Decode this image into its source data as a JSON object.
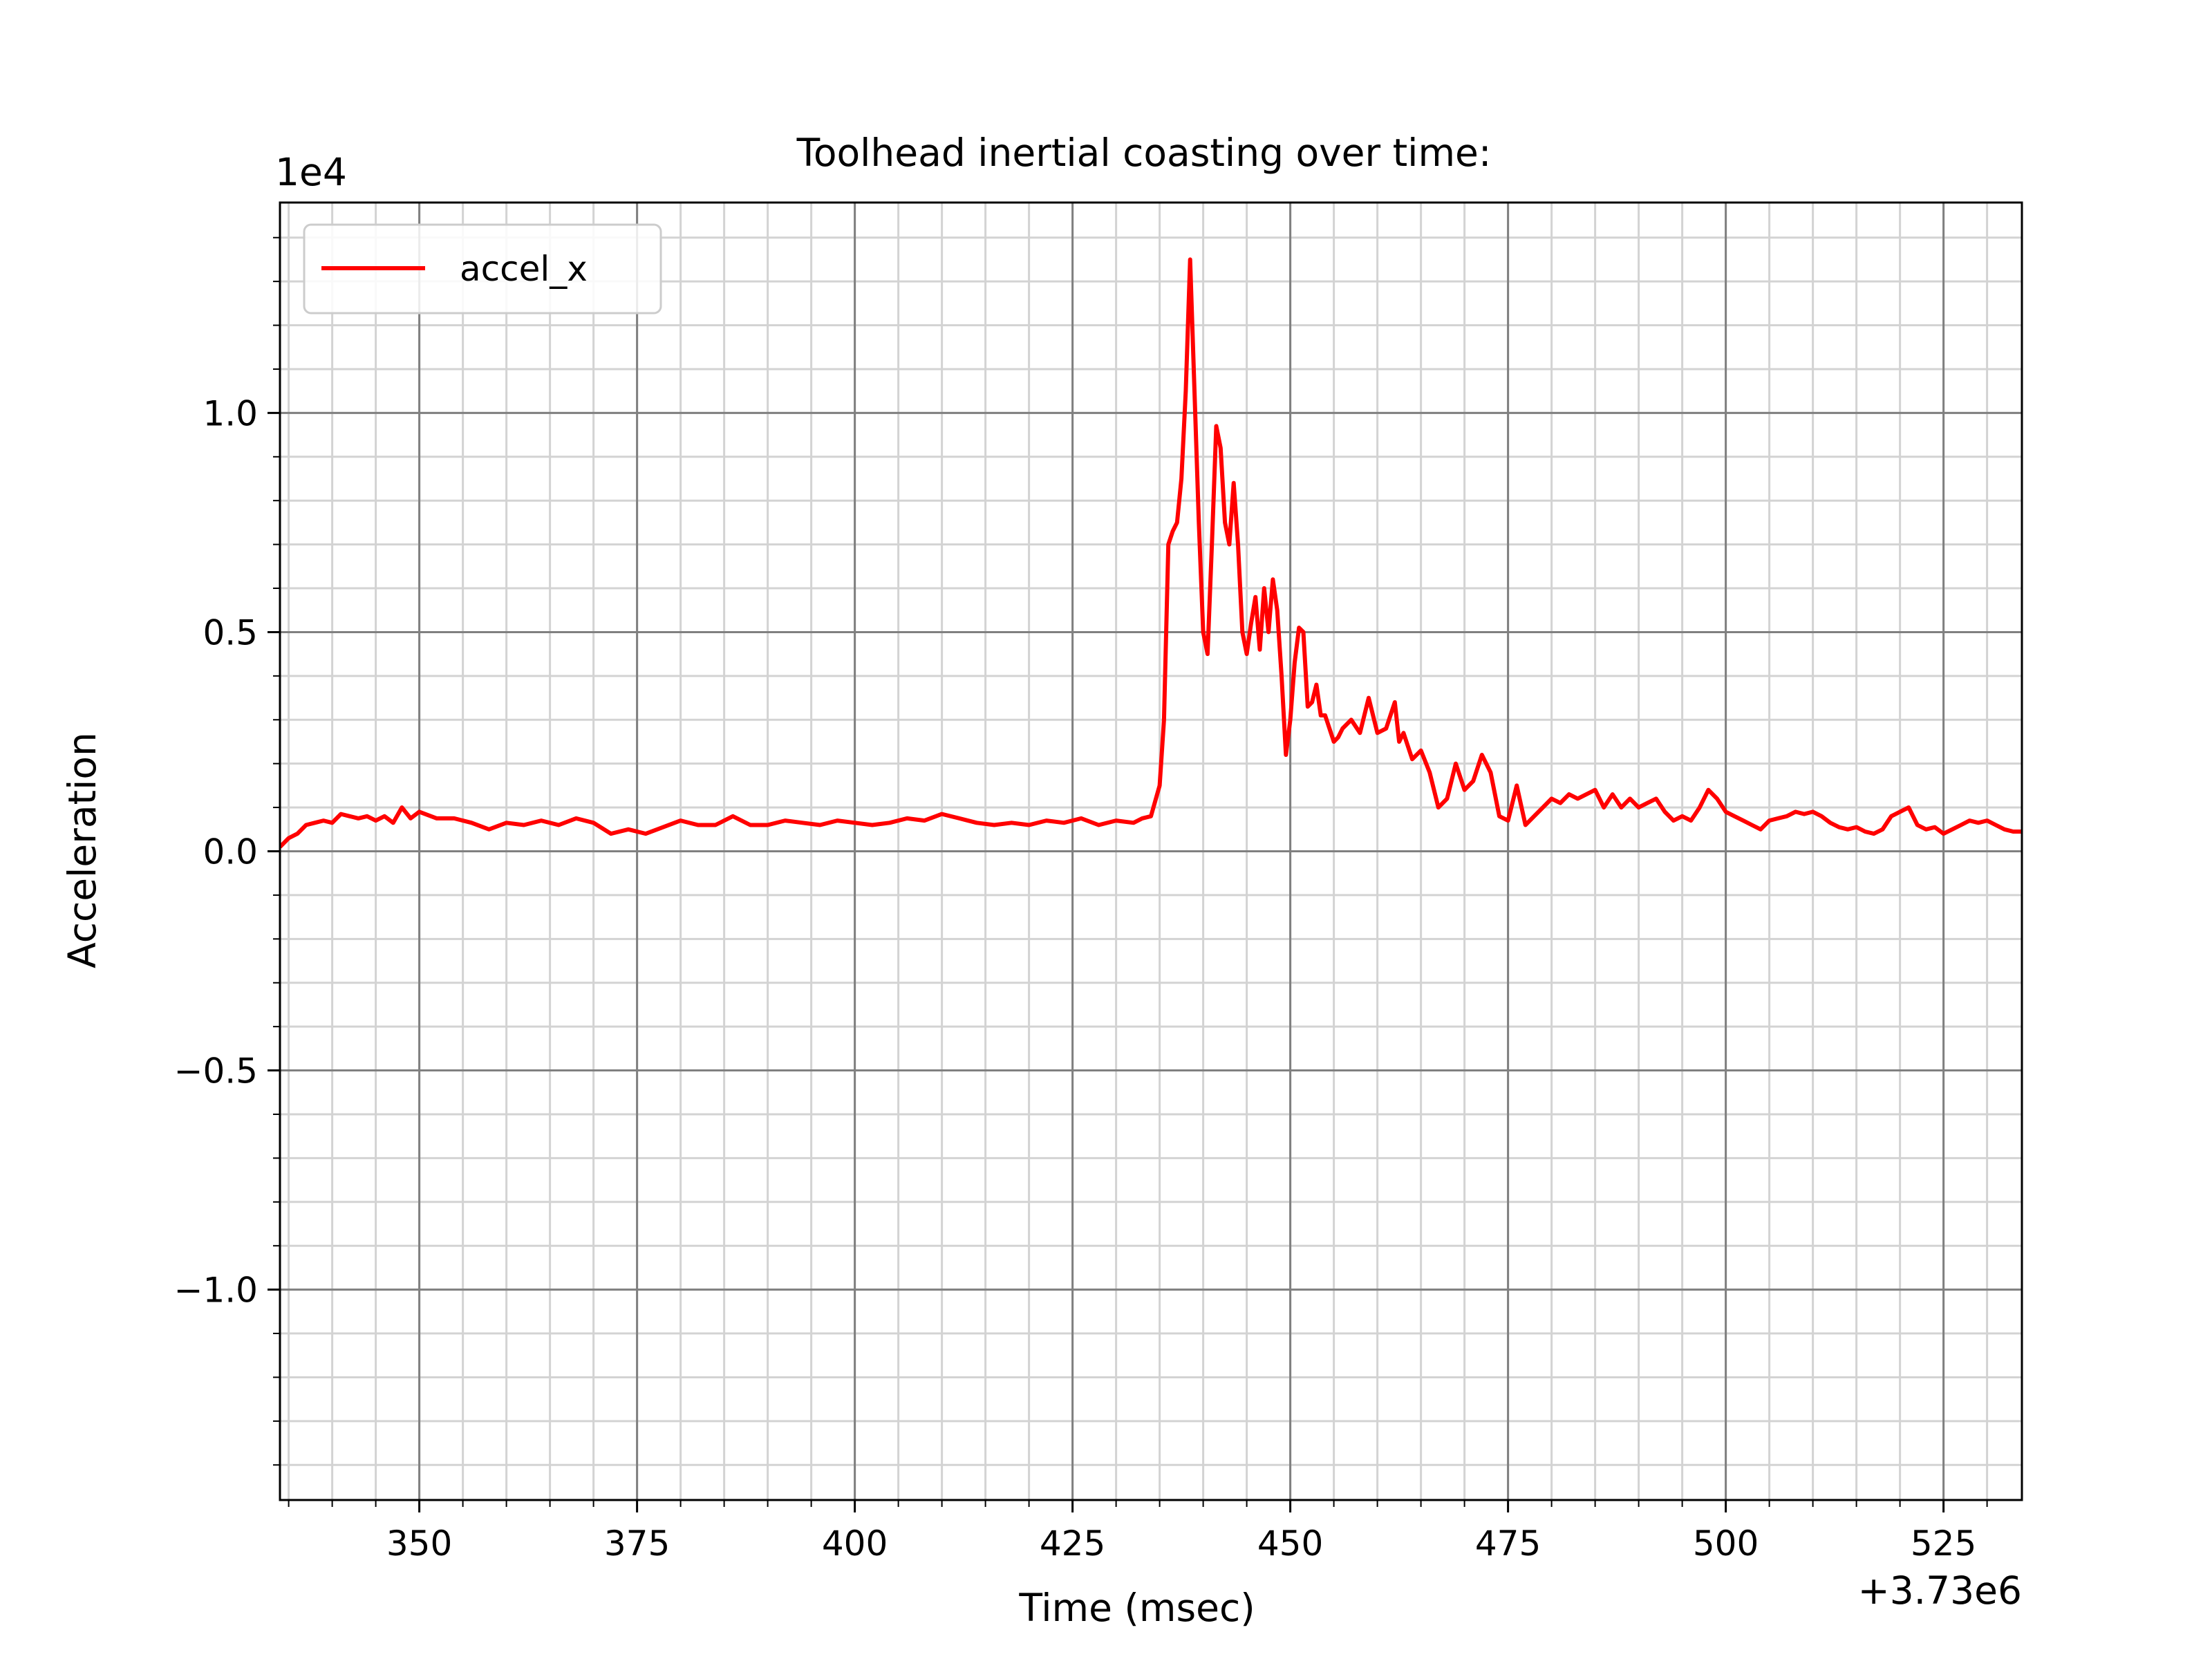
{
  "chart_data": {
    "type": "line",
    "title": "Toolhead inertial coasting over time:",
    "xlabel": "Time (msec)",
    "ylabel": "Acceleration",
    "x_offset_label": "+3.73e6",
    "y_scale_label": "1e4",
    "xlim": [
      3730334,
      3730534
    ],
    "ylim": [
      -14800,
      14800
    ],
    "x_ticks": [
      3730350,
      3730375,
      3730400,
      3730425,
      3730450,
      3730475,
      3730500,
      3730525
    ],
    "x_tick_labels": [
      "350",
      "375",
      "400",
      "425",
      "450",
      "475",
      "500",
      "525"
    ],
    "y_ticks": [
      -10000,
      -5000,
      0,
      5000,
      10000
    ],
    "y_tick_labels": [
      "−1.0",
      "−0.5",
      "0.0",
      "0.5",
      "1.0"
    ],
    "grid": true,
    "minor_grid": true,
    "legend_position": "top-left",
    "series": [
      {
        "name": "accel_x",
        "color": "#ff0000",
        "x": [
          3730334,
          3730335,
          3730336,
          3730337,
          3730338,
          3730339,
          3730340,
          3730341,
          3730342,
          3730343,
          3730344,
          3730345,
          3730346,
          3730347,
          3730348,
          3730349,
          3730350,
          3730352,
          3730354,
          3730356,
          3730358,
          3730360,
          3730362,
          3730364,
          3730366,
          3730368,
          3730370,
          3730372,
          3730374,
          3730376,
          3730378,
          3730380,
          3730382,
          3730384,
          3730386,
          3730388,
          3730390,
          3730392,
          3730394,
          3730396,
          3730398,
          3730400,
          3730402,
          3730404,
          3730406,
          3730408,
          3730410,
          3730412,
          3730414,
          3730416,
          3730418,
          3730420,
          3730422,
          3730424,
          3730426,
          3730428,
          3730430,
          3730432,
          3730433,
          3730434,
          3730435,
          3730435.5,
          3730436,
          3730436.5,
          3730437,
          3730437.5,
          3730438,
          3730438.5,
          3730439,
          3730439.5,
          3730440,
          3730440.5,
          3730441,
          3730441.5,
          3730442,
          3730442.5,
          3730443,
          3730443.5,
          3730444,
          3730444.5,
          3730445,
          3730445.5,
          3730446,
          3730446.5,
          3730447,
          3730447.5,
          3730448,
          3730448.5,
          3730449,
          3730449.5,
          3730450,
          3730450.5,
          3730451,
          3730451.5,
          3730452,
          3730452.5,
          3730453,
          3730453.5,
          3730454,
          3730454.5,
          3730455,
          3730455.5,
          3730456,
          3730457,
          3730458,
          3730459,
          3730460,
          3730461,
          3730462,
          3730462.5,
          3730463,
          3730464,
          3730465,
          3730466,
          3730467,
          3730468,
          3730469,
          3730470,
          3730471,
          3730472,
          3730473,
          3730474,
          3730475,
          3730476,
          3730477,
          3730478,
          3730479,
          3730480,
          3730481,
          3730482,
          3730483,
          3730484,
          3730485,
          3730486,
          3730487,
          3730488,
          3730489,
          3730490,
          3730491,
          3730492,
          3730493,
          3730494,
          3730495,
          3730496,
          3730497,
          3730498,
          3730499,
          3730500,
          3730501,
          3730502,
          3730503,
          3730504,
          3730505,
          3730506,
          3730507,
          3730508,
          3730509,
          3730510,
          3730511,
          3730512,
          3730513,
          3730514,
          3730515,
          3730516,
          3730517,
          3730518,
          3730519,
          3730520,
          3730521,
          3730522,
          3730523,
          3730524,
          3730525,
          3730526,
          3730527,
          3730528,
          3730529,
          3730530,
          3730531,
          3730532,
          3730533,
          3730534
        ],
        "y": [
          100,
          300,
          400,
          600,
          650,
          700,
          650,
          850,
          800,
          750,
          800,
          700,
          800,
          650,
          1000,
          750,
          900,
          750,
          750,
          650,
          500,
          650,
          600,
          700,
          600,
          750,
          650,
          400,
          500,
          400,
          550,
          700,
          600,
          600,
          800,
          600,
          600,
          700,
          650,
          600,
          700,
          650,
          600,
          650,
          750,
          700,
          850,
          750,
          650,
          600,
          650,
          600,
          700,
          650,
          750,
          600,
          700,
          650,
          750,
          800,
          1500,
          3000,
          7000,
          7300,
          7500,
          8500,
          10500,
          13500,
          10500,
          7500,
          5000,
          4500,
          7000,
          9700,
          9200,
          7500,
          7000,
          8400,
          7000,
          5000,
          4500,
          5200,
          5800,
          4600,
          6000,
          5000,
          6200,
          5500,
          4000,
          2200,
          3000,
          4300,
          5100,
          5000,
          3300,
          3400,
          3800,
          3100,
          3100,
          2800,
          2500,
          2600,
          2800,
          3000,
          2700,
          3500,
          2700,
          2800,
          3400,
          2500,
          2700,
          2100,
          2300,
          1800,
          1000,
          1200,
          2000,
          1400,
          1600,
          2200,
          1800,
          800,
          700,
          1500,
          600,
          800,
          1000,
          1200,
          1100,
          1300,
          1200,
          1300,
          1400,
          1000,
          1300,
          1000,
          1200,
          1000,
          1100,
          1200,
          900,
          700,
          800,
          700,
          1000,
          1400,
          1200,
          900,
          800,
          700,
          600,
          500,
          700,
          750,
          800,
          900,
          850,
          900,
          800,
          650,
          550,
          500,
          550,
          450,
          400,
          500,
          800,
          900,
          1000,
          600,
          500,
          550,
          400,
          500,
          600,
          700,
          650,
          700,
          600,
          500,
          450,
          450
        ]
      }
    ]
  }
}
